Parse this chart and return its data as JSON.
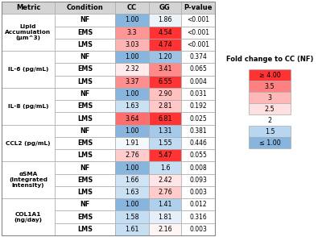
{
  "metrics": [
    "Lipid\nAccumulation\n(μm^3)",
    "IL-6 (pg/mL)",
    "IL-8 (pg/mL)",
    "CCL2 (pg/mL)",
    "αSMA\n(Integrated\nIntensity)",
    "COL1A1\n(ng/day)"
  ],
  "conditions": [
    "NF",
    "EMS",
    "LMS"
  ],
  "cc_values": [
    [
      1.0,
      3.3,
      3.03
    ],
    [
      1.0,
      2.32,
      3.37
    ],
    [
      1.0,
      1.63,
      3.64
    ],
    [
      1.0,
      1.91,
      2.76
    ],
    [
      1.0,
      1.66,
      1.63
    ],
    [
      1.0,
      1.58,
      1.61
    ]
  ],
  "gg_values": [
    [
      1.86,
      4.54,
      4.74
    ],
    [
      1.2,
      3.41,
      6.55
    ],
    [
      2.9,
      2.81,
      6.81
    ],
    [
      1.31,
      1.55,
      5.47
    ],
    [
      1.6,
      2.42,
      2.76
    ],
    [
      1.41,
      1.81,
      2.16
    ]
  ],
  "p_values": [
    [
      "<0.001",
      "<0.001",
      "<0.001"
    ],
    [
      "0.374",
      "0.065",
      "0.004"
    ],
    [
      "0.031",
      "0.192",
      "0.025"
    ],
    [
      "0.381",
      "0.446",
      "0.055"
    ],
    [
      "0.008",
      "0.093",
      "0.003"
    ],
    [
      "0.012",
      "0.316",
      "0.003"
    ]
  ],
  "cc_display": [
    [
      "1.00",
      "3.3",
      "3.03"
    ],
    [
      "1.00",
      "2.32",
      "3.37"
    ],
    [
      "1.00",
      "1.63",
      "3.64"
    ],
    [
      "1.00",
      "1.91",
      "2.76"
    ],
    [
      "1.00",
      "1.66",
      "1.63"
    ],
    [
      "1.00",
      "1.58",
      "1.61"
    ]
  ],
  "gg_display": [
    [
      "1.86",
      "4.54",
      "4.74"
    ],
    [
      "1.20",
      "3.41",
      "6.55"
    ],
    [
      "2.90",
      "2.81",
      "6.81"
    ],
    [
      "1.31",
      "1.55",
      "5.47"
    ],
    [
      "1.6",
      "2.42",
      "2.76"
    ],
    [
      "1.41",
      "1.81",
      "2.16"
    ]
  ],
  "legend_labels": [
    "≥ 4.00",
    "3.5",
    "3",
    "2.5",
    "2",
    "1.5",
    "≤ 1.00"
  ],
  "legend_has_box": [
    true,
    true,
    true,
    true,
    false,
    true,
    true
  ],
  "legend_rep_vals": [
    4.5,
    3.5,
    3.0,
    2.5,
    2.0,
    1.5,
    1.0
  ]
}
